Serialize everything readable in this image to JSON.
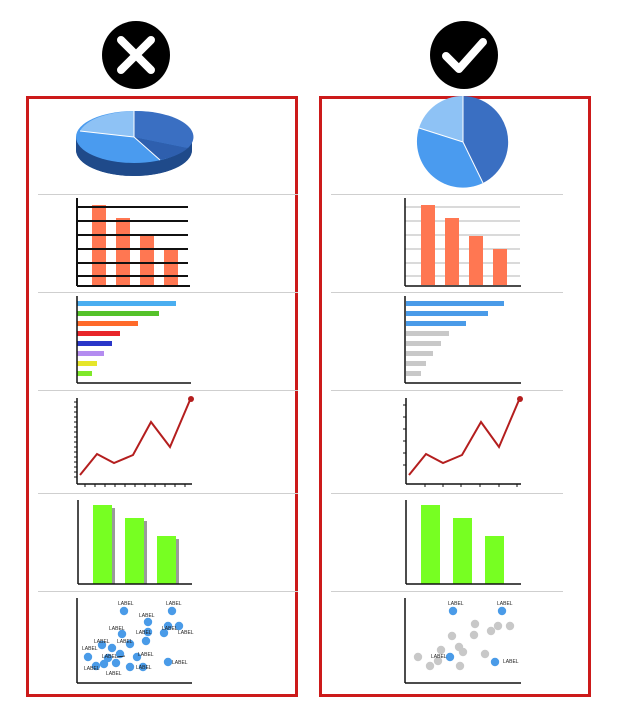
{
  "columns": [
    {
      "id": "bad",
      "icon": "cross-icon"
    },
    {
      "id": "good",
      "icon": "check-icon"
    }
  ],
  "colors": {
    "border": "#cc1a1a",
    "pie_dark": "#3a6fc2",
    "pie_mid": "#4a9bef",
    "pie_light": "#8ec2f5",
    "bar_orange": "#ff7752",
    "line_red": "#b41e1e",
    "bar_green": "#77ff22",
    "dot_blue": "#4a9be8",
    "dot_grey": "#c8c8c8"
  },
  "scatter": {
    "label": "LABEL",
    "bad_labels": [
      "LABEL",
      "LABEL",
      "LABEL",
      "LABEL",
      "LABEL",
      "LABEL",
      "LABEL",
      "LABEL",
      "LABEL",
      "LABEL",
      "LABEL",
      "LABEL",
      "LABEL",
      "LABEL",
      "LABEL",
      "LABEL"
    ],
    "good_labels": [
      "LABEL",
      "LABEL",
      "LABEL",
      "LABEL"
    ]
  }
}
